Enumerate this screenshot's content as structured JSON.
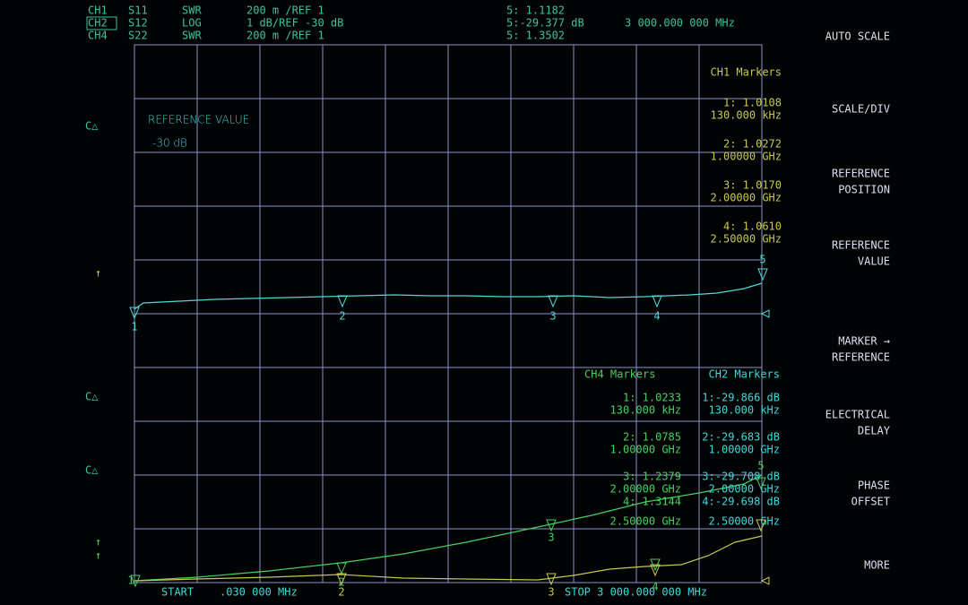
{
  "header": {
    "rows": [
      [
        "CH1",
        "S11",
        "SWR",
        "200 m /REF 1",
        "5: 1.1182"
      ],
      [
        "CH2",
        "S12",
        "LOG",
        "1 dB/REF -30 dB",
        "5:-29.377 dB",
        "3 000.000 000 MHz"
      ],
      [
        "CH4",
        "S22",
        "SWR",
        "200 m /REF 1",
        "5: 1.3502"
      ]
    ]
  },
  "softkeys": [
    [
      "AUTO SCALE"
    ],
    [
      "SCALE/DIV"
    ],
    [
      "REFERENCE",
      "POSITION"
    ],
    [
      "REFERENCE",
      "VALUE"
    ],
    [
      "MARKER →",
      "REFERENCE"
    ],
    [
      "ELECTRICAL",
      "DELAY"
    ],
    [
      "PHASE",
      "OFFSET"
    ],
    [
      "MORE"
    ]
  ],
  "overlay": [
    "REFERENCE VALUE",
    "-30 dB"
  ],
  "ch1_markers": {
    "title": "CH1 Markers",
    "entries": [
      [
        "1: 1.0108",
        "130.000 kHz"
      ],
      [
        "2: 1.0272",
        "1.00000 GHz"
      ],
      [
        "3: 1.0170",
        "2.00000 GHz"
      ],
      [
        "4: 1.0610",
        "2.50000 GHz"
      ]
    ]
  },
  "ch4_markers": {
    "title": "CH4 Markers",
    "entries": [
      [
        "1: 1.0233",
        "130.000 kHz"
      ],
      [
        "2: 1.0785",
        "1.00000 GHz"
      ],
      [
        "3: 1.2379",
        "2.00000 GHz"
      ],
      [
        "4: 1.3144",
        "2.50000 GHz"
      ]
    ]
  },
  "ch2_markers": {
    "title": "CH2 Markers",
    "entries": [
      [
        "1:-29.866 dB",
        "130.000 kHz"
      ],
      [
        "2:-29.683 dB",
        "1.00000 GHz"
      ],
      [
        "3:-29.708 dB",
        "2.00000 GHz"
      ],
      [
        "4:-29.698 dB",
        "2.50000 GHz"
      ]
    ]
  },
  "footer": {
    "start": "START",
    "start_value": ".030 000 MHz",
    "stop": "STOP 3 000.000 000 MHz"
  },
  "side_labels": [
    "C△",
    "C△",
    "C△",
    "↑",
    "↑",
    "↑"
  ],
  "marker_ids": [
    "1",
    "2",
    "3",
    "4",
    "5"
  ]
}
